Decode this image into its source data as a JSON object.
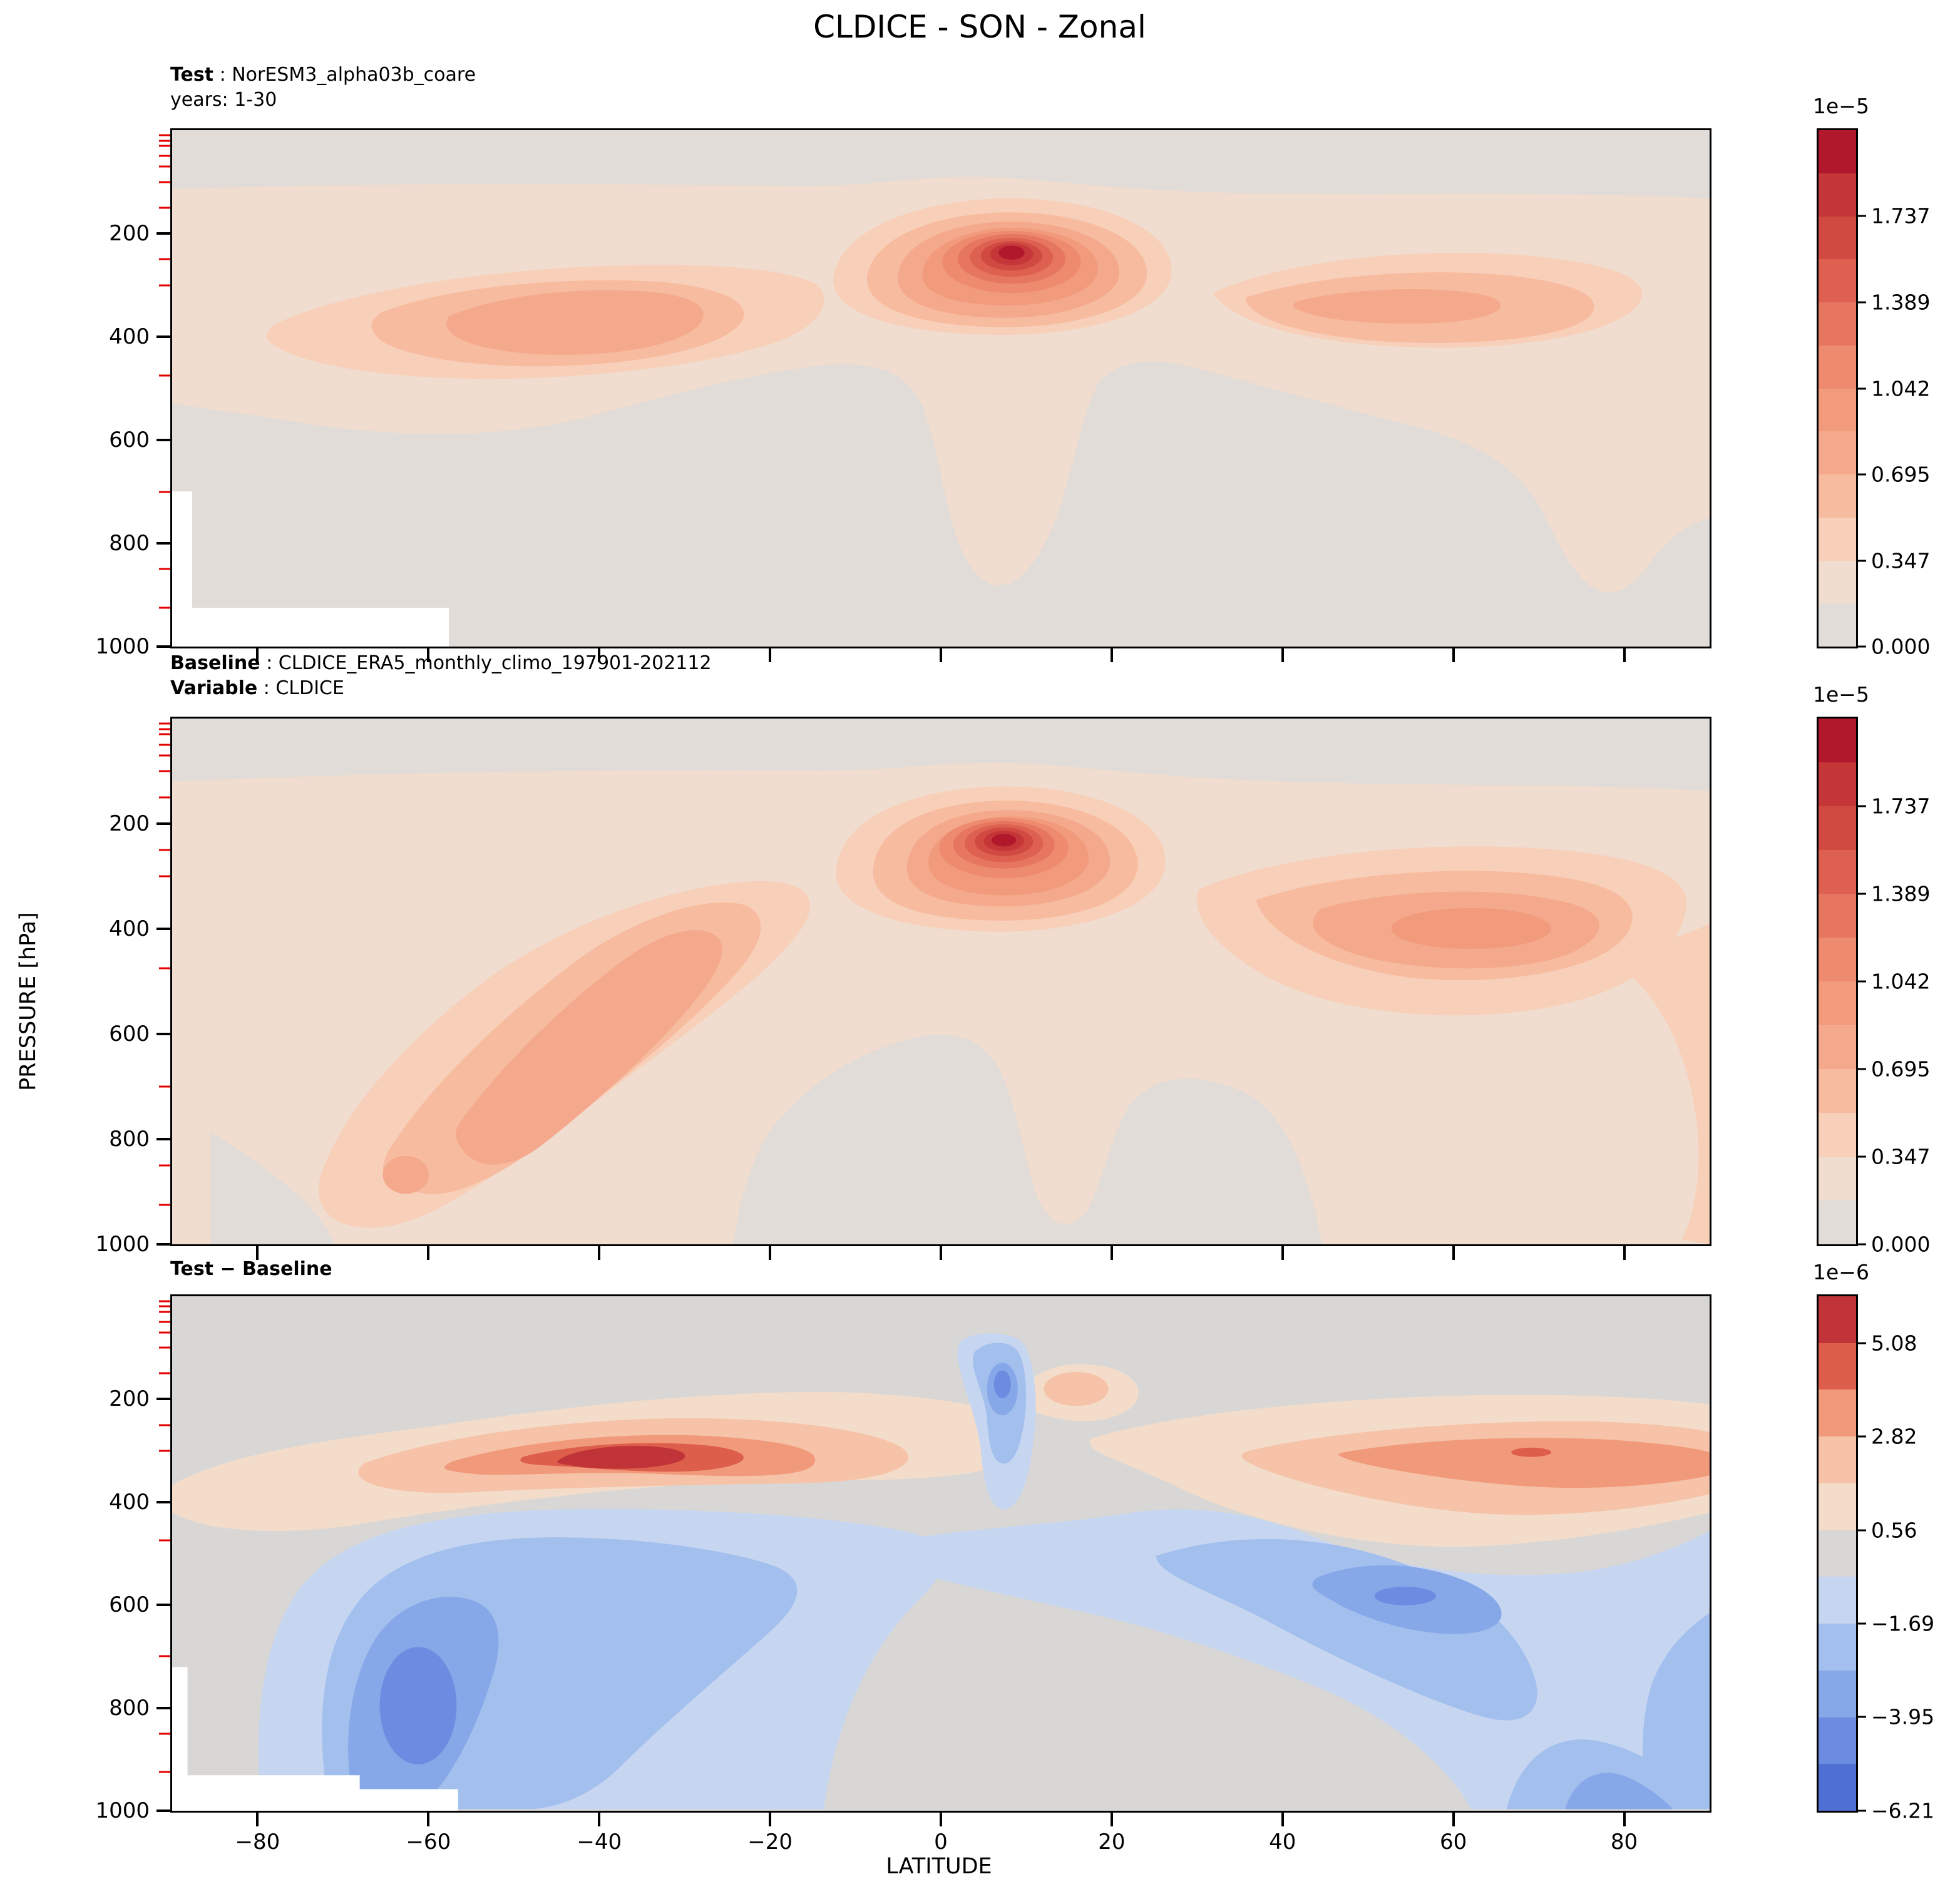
{
  "title": "CLDICE - SON - Zonal",
  "panels": [
    {
      "header": {
        "label": "Test",
        "value": " : NorESM3_alpha03b_coare"
      },
      "subheader": {
        "label": "",
        "value": "years: 1-30"
      },
      "colorbar": {
        "exponent": "1e−5",
        "min": 0,
        "max": 2.0844,
        "tick_values": [
          1.737,
          1.389,
          1.042,
          0.695,
          0.347,
          0.0
        ],
        "tick_labels": [
          "1.737",
          "1.389",
          "1.042",
          "0.695",
          "0.347",
          "0.000"
        ],
        "palette": "mean_palette"
      }
    },
    {
      "header": {
        "label": "Baseline",
        "value": " : CLDICE_ERA5_monthly_climo_197901-202112"
      },
      "subheader": {
        "label": "Variable",
        "value": " : CLDICE"
      },
      "colorbar": {
        "exponent": "1e−5",
        "min": 0,
        "max": 2.0844,
        "tick_values": [
          1.737,
          1.389,
          1.042,
          0.695,
          0.347,
          0.0
        ],
        "tick_labels": [
          "1.737",
          "1.389",
          "1.042",
          "0.695",
          "0.347",
          "0.000"
        ],
        "palette": "mean_palette"
      }
    },
    {
      "header": {
        "label": "Test − Baseline",
        "value": ""
      },
      "subheader": {
        "label": "",
        "value": ""
      },
      "colorbar": {
        "exponent": "1e−6",
        "min": -6.21,
        "max": 6.21,
        "tick_values": [
          5.08,
          2.82,
          0.56,
          -1.69,
          -3.95,
          -6.21
        ],
        "tick_labels": [
          "5.08",
          "2.82",
          "0.56",
          "−1.69",
          "−3.95",
          "−6.21"
        ],
        "palette": "diff_palette"
      }
    }
  ],
  "axes": {
    "x": {
      "label": "LATITUDE",
      "min": -90,
      "max": 90,
      "tick_values": [
        -80,
        -60,
        -40,
        -20,
        0,
        20,
        40,
        60,
        80
      ],
      "tick_labels": [
        "−80",
        "−60",
        "−40",
        "−20",
        "0",
        "20",
        "40",
        "60",
        "80"
      ]
    },
    "y": {
      "label": "PRESSURE [hPa]",
      "min": 0,
      "max": 1000,
      "tick_values": [
        200,
        400,
        600,
        800,
        1000
      ],
      "tick_labels": [
        "200",
        "400",
        "600",
        "800",
        "1000"
      ],
      "minor_ticks_red_hPa": [
        10,
        20,
        30,
        50,
        70,
        100,
        150,
        250,
        300,
        475,
        700,
        850,
        925
      ]
    }
  },
  "palettes": {
    "mean_palette": [
      "#e1dcd7",
      "#f0ddcf",
      "#f8cfb8",
      "#f7bb9f",
      "#f4a98d",
      "#f29a7c",
      "#ee8a6e",
      "#e67660",
      "#dd6050",
      "#d14a42",
      "#c43638",
      "#b2182b"
    ],
    "diff_palette": [
      "#4f6fd2",
      "#6b8ce0",
      "#86a7e8",
      "#a2bfee",
      "#c6d6f1",
      "#d9d7d5",
      "#f3dcca",
      "#f6c3a8",
      "#f09a7b",
      "#dd5f4b",
      "#c03338"
    ]
  },
  "chart_data": [
    {
      "type": "filled_contour",
      "panel": "Test",
      "dataset": "NorESM3_alpha03b_coare",
      "years": "1-30",
      "variable": "CLDICE",
      "season": "SON",
      "view": "Zonal",
      "xlabel": "LATITUDE",
      "x_range": [
        -90,
        90
      ],
      "ylabel": "PRESSURE [hPa]",
      "y_range_top_to_bottom": [
        0,
        1000
      ],
      "value_scale": "1e-5",
      "contour_min": 0.0,
      "contour_max": 2.0844,
      "contour_interval": 0.1737,
      "colorbar_tick_values": [
        0.0,
        0.347,
        0.695,
        1.042,
        1.389,
        1.737
      ],
      "features": [
        {
          "desc": "primary maximum (dark red core)",
          "lat": 8,
          "pressure_hPa": 245,
          "approx_value": "2.0e-5"
        },
        {
          "desc": "SH midlatitude secondary maximum",
          "lat": -45,
          "pressure_hPa": 340,
          "approx_value": "0.9e-5"
        },
        {
          "desc": "NH midlatitude secondary maximum",
          "lat": 50,
          "pressure_hPa": 330,
          "approx_value": "0.9e-5"
        },
        {
          "desc": "white masked topography",
          "region": "lat < -57 below ~925 hPa"
        }
      ]
    },
    {
      "type": "filled_contour",
      "panel": "Baseline",
      "dataset": "CLDICE_ERA5_monthly_climo_197901-202112",
      "variable": "CLDICE",
      "season": "SON",
      "view": "Zonal",
      "xlabel": "LATITUDE",
      "x_range": [
        -90,
        90
      ],
      "ylabel": "PRESSURE [hPa]",
      "y_range_top_to_bottom": [
        0,
        1000
      ],
      "value_scale": "1e-5",
      "contour_min": 0.0,
      "contour_max": 2.0844,
      "contour_interval": 0.1737,
      "colorbar_tick_values": [
        0.0,
        0.347,
        0.695,
        1.042,
        1.389,
        1.737
      ],
      "features": [
        {
          "desc": "primary maximum (dark red core)",
          "lat": 7,
          "pressure_hPa": 240,
          "approx_value": "2.0e-5"
        },
        {
          "desc": "SH diagonal band from (lat -20, 300 hPa) to (lat -72, 950 hPa)",
          "approx_value": "0.9e-5 core"
        },
        {
          "desc": "small SH low-level maximum",
          "lat": -62,
          "pressure_hPa": 870
        },
        {
          "desc": "NH band 300-450 hPa, lat 40-90",
          "approx_value": "0.9e-5 core"
        }
      ]
    },
    {
      "type": "filled_contour",
      "panel": "Test − Baseline",
      "season": "SON",
      "view": "Zonal",
      "xlabel": "LATITUDE",
      "x_range": [
        -90,
        90
      ],
      "ylabel": "PRESSURE [hPa]",
      "y_range_top_to_bottom": [
        0,
        1000
      ],
      "value_scale": "1e-6",
      "contour_min": -6.21,
      "contour_max": 6.21,
      "contour_interval": 1.129,
      "colorbar_tick_values": [
        -6.21,
        -3.95,
        -1.69,
        0.56,
        2.82,
        5.08
      ],
      "features": [
        {
          "desc": "positive maximum (dark red)",
          "lat": -43,
          "pressure_hPa": 300,
          "approx_value": "+5.6e-6"
        },
        {
          "desc": "NH positive band",
          "lat_range": [
            40,
            90
          ],
          "pressure_hPa": "250-400",
          "approx_value": "+3.5e-6"
        },
        {
          "desc": "negative minimum (dark blue)",
          "lat": -65,
          "pressure_hPa": 800,
          "approx_value": "-5.5e-6"
        },
        {
          "desc": "NH negative region sloping from (lat 40, 400 hPa) to (lat 90, 1000 hPa)",
          "approx_value": "-4.5e-6 core at lat 54, 490 hPa"
        },
        {
          "desc": "narrow tropical negative plume",
          "lat": 8,
          "pressure_hPa": "120-420",
          "approx_value": "-4e-6"
        },
        {
          "desc": "white masked topography",
          "region": "lat < -57 below ~930 hPa"
        }
      ]
    }
  ]
}
